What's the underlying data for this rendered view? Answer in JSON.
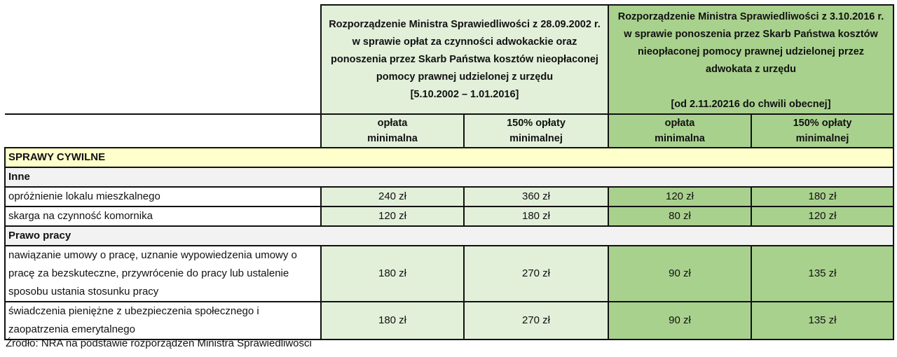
{
  "header": {
    "regulation_2002": {
      "text": "Rozporządzenie Ministra Sprawiedliwości z 28.09.2002 r. w sprawie opłat za czynności adwokackie oraz ponoszenia przez Skarb Państwa kosztów nieopłaconej pomocy prawnej udzielonej z urzędu",
      "period": "[5.10.2002 –  1.01.2016]"
    },
    "regulation_2016": {
      "text": "Rozporządzenie Ministra Sprawiedliwości z 3.10.2016 r. w sprawie ponoszenia przez Skarb Państwa kosztów nieopłaconej pomocy prawnej udzielonej przez adwokata z urzędu",
      "period": "[od 2.11.20216 do chwili obecnej]"
    },
    "sub": [
      "opłata minimalna",
      "150% opłaty minimalnej",
      "opłata minimalna",
      "150% opłaty minimalnej"
    ]
  },
  "section": "SPRAWY CYWILNE",
  "groups": [
    {
      "title": "Inne",
      "rows": [
        {
          "label": "opróżnienie lokalu mieszkalnego",
          "values": [
            "240 zł",
            "360 zł",
            "120 zł",
            "180 zł"
          ]
        },
        {
          "label": "skarga na czynność komornika",
          "values": [
            "120 zł",
            "180 zł",
            "80 zł",
            "120 zł"
          ]
        }
      ]
    },
    {
      "title": "Prawo pracy",
      "rows": [
        {
          "label": "nawiązanie umowy o pracę, uznanie wypowiedzenia umowy o pracę za bezskuteczne, przywrócenie do pracy lub ustalenie sposobu ustania stosunku pracy",
          "values": [
            "180 zł",
            "270 zł",
            "90 zł",
            "135 zł"
          ]
        },
        {
          "label": "świadczenia pieniężne z ubezpieczenia społecznego i zaopatrzenia emerytalnego",
          "values": [
            "180 zł",
            "270 zł",
            "90 zł",
            "135 zł"
          ]
        }
      ]
    }
  ],
  "source": "Źródło: NRA na podstawie rozporządzeń Ministra Sprawiedliwości",
  "colors": {
    "light_green": "#e2efd9",
    "dark_green": "#a9d18e",
    "section": "#ffffcc"
  }
}
